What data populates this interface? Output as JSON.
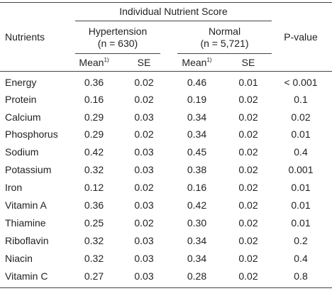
{
  "table": {
    "header": {
      "nutrients": "Nutrients",
      "group_title": "Individual Nutrient Score",
      "hypertension": "Hypertension",
      "hypertension_n": "(n = 630)",
      "normal": "Normal",
      "normal_n": "(n = 5,721)",
      "p_value": "P-value",
      "mean": "Mean",
      "mean_note": "1)",
      "se": "SE"
    },
    "rows": [
      {
        "name": "Energy",
        "h_mean": "0.36",
        "h_se": "0.02",
        "n_mean": "0.46",
        "n_se": "0.01",
        "p": "< 0.001"
      },
      {
        "name": "Protein",
        "h_mean": "0.16",
        "h_se": "0.02",
        "n_mean": "0.19",
        "n_se": "0.02",
        "p": "0.1"
      },
      {
        "name": "Calcium",
        "h_mean": "0.29",
        "h_se": "0.03",
        "n_mean": "0.34",
        "n_se": "0.02",
        "p": "0.02"
      },
      {
        "name": "Phosphorus",
        "h_mean": "0.29",
        "h_se": "0.02",
        "n_mean": "0.34",
        "n_se": "0.02",
        "p": "0.01"
      },
      {
        "name": "Sodium",
        "h_mean": "0.42",
        "h_se": "0.03",
        "n_mean": "0.45",
        "n_se": "0.02",
        "p": "0.4"
      },
      {
        "name": "Potassium",
        "h_mean": "0.32",
        "h_se": "0.03",
        "n_mean": "0.38",
        "n_se": "0.02",
        "p": "0.001"
      },
      {
        "name": "Iron",
        "h_mean": "0.12",
        "h_se": "0.02",
        "n_mean": "0.16",
        "n_se": "0.02",
        "p": "0.01"
      },
      {
        "name": "Vitamin A",
        "h_mean": "0.36",
        "h_se": "0.03",
        "n_mean": "0.42",
        "n_se": "0.02",
        "p": "0.01"
      },
      {
        "name": "Thiamine",
        "h_mean": "0.25",
        "h_se": "0.02",
        "n_mean": "0.30",
        "n_se": "0.02",
        "p": "0.01"
      },
      {
        "name": "Riboflavin",
        "h_mean": "0.32",
        "h_se": "0.03",
        "n_mean": "0.34",
        "n_se": "0.02",
        "p": "0.2"
      },
      {
        "name": "Niacin",
        "h_mean": "0.32",
        "h_se": "0.03",
        "n_mean": "0.34",
        "n_se": "0.02",
        "p": "0.4"
      },
      {
        "name": "Vitamin C",
        "h_mean": "0.27",
        "h_se": "0.03",
        "n_mean": "0.28",
        "n_se": "0.02",
        "p": "0.8"
      }
    ]
  }
}
